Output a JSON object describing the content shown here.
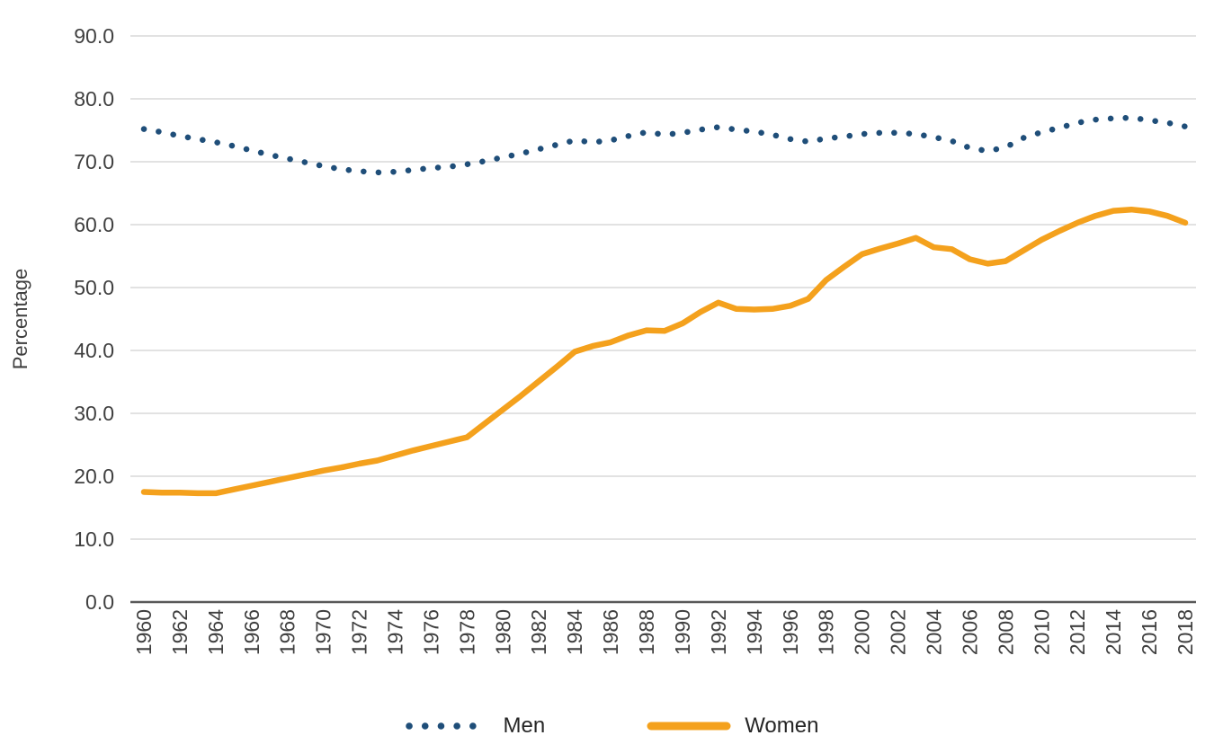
{
  "chart_data": {
    "type": "line",
    "title": "",
    "xlabel": "",
    "ylabel": "Percentage",
    "ylim": [
      0,
      90
    ],
    "grid": true,
    "legend_position": "bottom-center",
    "y_tick_labels": [
      "0.0",
      "10.0",
      "20.0",
      "30.0",
      "40.0",
      "50.0",
      "60.0",
      "70.0",
      "80.0",
      "90.0"
    ],
    "x_tick_years": [
      1960,
      1962,
      1964,
      1966,
      1968,
      1970,
      1972,
      1974,
      1976,
      1978,
      1980,
      1982,
      1984,
      1986,
      1988,
      1990,
      1992,
      1994,
      1996,
      1998,
      2000,
      2002,
      2004,
      2006,
      2008,
      2010,
      2012,
      2014,
      2016,
      2018
    ],
    "x": [
      1960,
      1961,
      1962,
      1963,
      1964,
      1965,
      1966,
      1967,
      1968,
      1969,
      1970,
      1971,
      1972,
      1973,
      1974,
      1975,
      1976,
      1977,
      1978,
      1979,
      1980,
      1981,
      1982,
      1983,
      1984,
      1985,
      1986,
      1987,
      1988,
      1989,
      1990,
      1991,
      1992,
      1993,
      1994,
      1995,
      1996,
      1997,
      1998,
      1999,
      2000,
      2001,
      2002,
      2003,
      2004,
      2005,
      2006,
      2007,
      2008,
      2009,
      2010,
      2011,
      2012,
      2013,
      2014,
      2015,
      2016,
      2017,
      2018
    ],
    "series": [
      {
        "name": "Men",
        "line_style": "dotted",
        "color": "#1F4E79",
        "values": [
          75.2,
          74.7,
          74.1,
          73.6,
          73.1,
          72.5,
          71.8,
          71.1,
          70.5,
          69.9,
          69.3,
          68.8,
          68.5,
          68.3,
          68.4,
          68.7,
          69.0,
          69.2,
          69.6,
          70.1,
          70.7,
          71.3,
          72.0,
          72.7,
          73.4,
          73.1,
          73.4,
          74.1,
          74.7,
          74.3,
          74.6,
          75.1,
          75.5,
          75.1,
          74.8,
          74.3,
          73.6,
          73.2,
          73.7,
          74.0,
          74.4,
          74.6,
          74.6,
          74.4,
          73.9,
          73.3,
          72.2,
          71.7,
          72.3,
          73.8,
          74.7,
          75.4,
          76.2,
          76.7,
          76.9,
          77.0,
          76.6,
          76.2,
          75.6
        ]
      },
      {
        "name": "Women",
        "line_style": "solid",
        "color": "#F4A11D",
        "values": [
          17.5,
          17.4,
          17.4,
          17.3,
          17.3,
          17.9,
          18.5,
          19.1,
          19.7,
          20.3,
          20.9,
          21.4,
          22.0,
          22.5,
          23.3,
          24.1,
          24.8,
          25.5,
          26.2,
          28.4,
          30.6,
          32.8,
          35.1,
          37.4,
          39.8,
          40.7,
          41.3,
          42.4,
          43.2,
          43.1,
          44.3,
          46.1,
          47.6,
          46.6,
          46.5,
          46.6,
          47.1,
          48.2,
          51.2,
          53.3,
          55.3,
          56.2,
          57.0,
          57.9,
          56.4,
          56.1,
          54.5,
          53.8,
          54.2,
          55.9,
          57.6,
          59.0,
          60.3,
          61.4,
          62.2,
          62.4,
          62.1,
          61.4,
          60.3
        ]
      }
    ]
  },
  "style": {
    "grid_color": "#d8d8d8",
    "axis_line_color": "#595959",
    "tick_label_color": "#3f3f3f",
    "legend_text_color": "#262626",
    "background": "#ffffff"
  }
}
